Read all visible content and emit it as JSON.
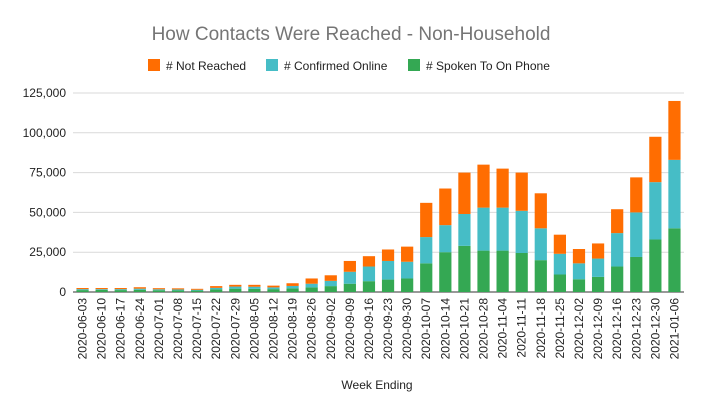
{
  "chart_data": {
    "type": "bar",
    "stacked": true,
    "title": "How Contacts Were Reached - Non-Household",
    "xlabel": "Week Ending",
    "ylabel": "",
    "ylim": [
      0,
      125000
    ],
    "yticks": [
      0,
      25000,
      50000,
      75000,
      100000,
      125000
    ],
    "ytick_labels": [
      "0",
      "25,000",
      "50,000",
      "75,000",
      "100,000",
      "125,000"
    ],
    "grid": true,
    "legend_position": "top",
    "categories": [
      "2020-06-03",
      "2020-06-10",
      "2020-06-17",
      "2020-06-24",
      "2020-07-01",
      "2020-07-08",
      "2020-07-15",
      "2020-07-22",
      "2020-07-29",
      "2020-08-05",
      "2020-08-12",
      "2020-08-19",
      "2020-08-26",
      "2020-09-02",
      "2020-09-09",
      "2020-09-16",
      "2020-09-23",
      "2020-09-30",
      "2020-10-07",
      "2020-10-14",
      "2020-10-21",
      "2020-10-28",
      "2020-11-04",
      "2020-11-11",
      "2020-11-18",
      "2020-11-25",
      "2020-12-02",
      "2020-12-09",
      "2020-12-16",
      "2020-12-23",
      "2020-12-30",
      "2021-01-06"
    ],
    "series": [
      {
        "name": "# Spoken To On Phone",
        "color": "#34a853",
        "values": [
          1200,
          1300,
          1200,
          1400,
          1100,
          1000,
          900,
          1700,
          2100,
          2000,
          1800,
          2300,
          2900,
          3700,
          5200,
          6800,
          7800,
          8500,
          18000,
          25000,
          29000,
          26000,
          26000,
          24500,
          20000,
          11000,
          8000,
          9500,
          16000,
          22000,
          33000,
          40000
        ]
      },
      {
        "name": "# Confirmed Online",
        "color": "#46bdc6",
        "values": [
          600,
          500,
          600,
          700,
          600,
          600,
          500,
          900,
          1300,
          1300,
          1100,
          1500,
          2300,
          3300,
          7500,
          9200,
          11700,
          10500,
          16500,
          17000,
          20000,
          27000,
          27000,
          26500,
          20000,
          13000,
          10000,
          11500,
          21000,
          28000,
          36000,
          43000
        ]
      },
      {
        "name": "# Not Reached",
        "color": "#ff6d01",
        "values": [
          700,
          700,
          700,
          900,
          700,
          700,
          600,
          1100,
          1100,
          1200,
          1100,
          1700,
          3300,
          3500,
          6800,
          6500,
          7200,
          9500,
          21500,
          23000,
          26000,
          27000,
          24500,
          24000,
          22000,
          12000,
          9000,
          9500,
          15000,
          22000,
          28500,
          37000
        ]
      }
    ]
  }
}
